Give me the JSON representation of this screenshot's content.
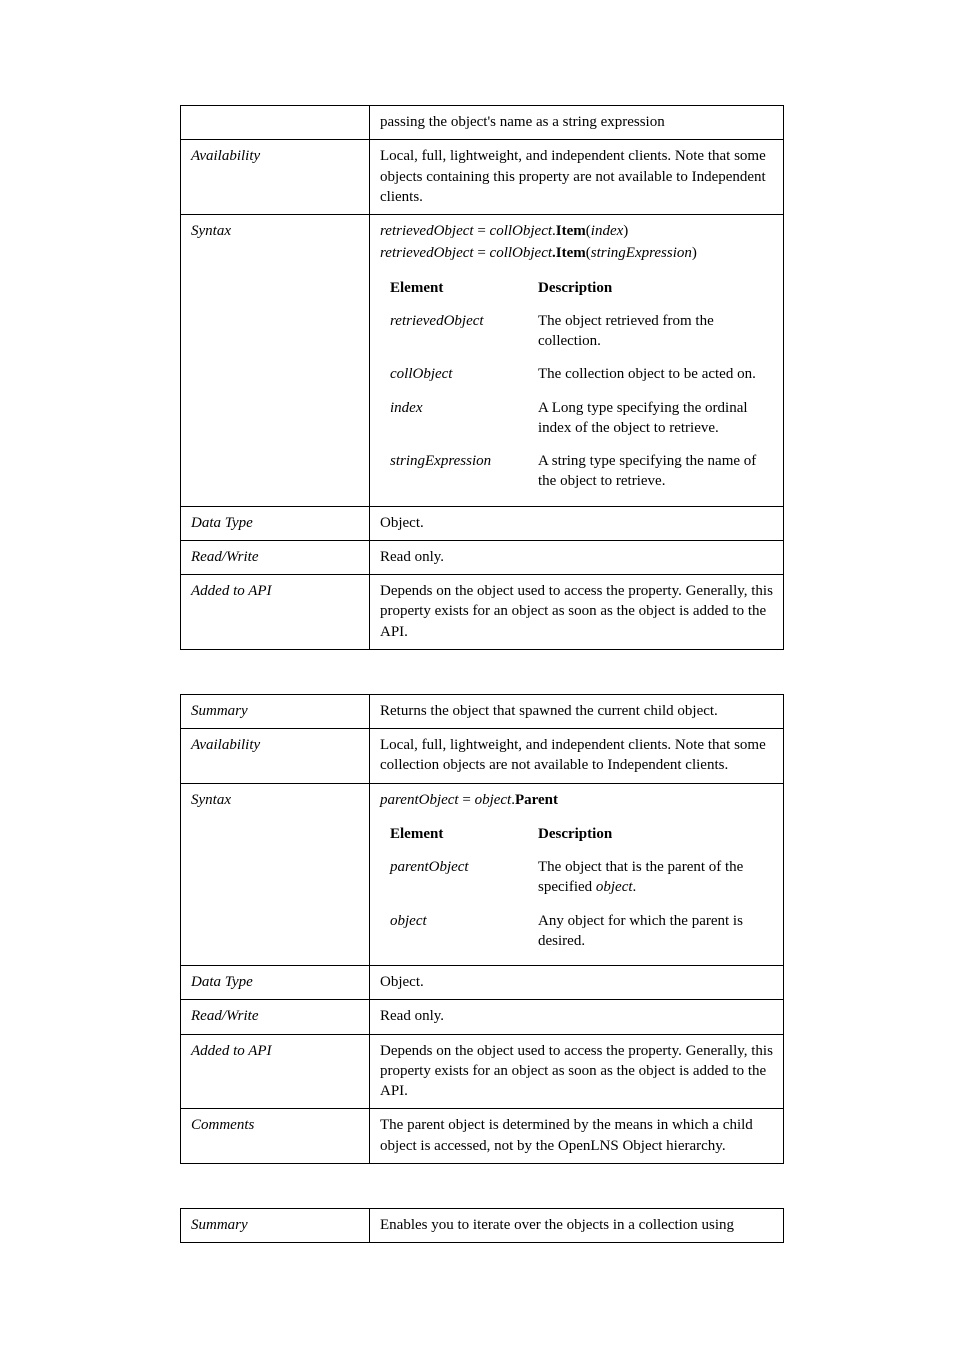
{
  "table1": {
    "row0_label": "",
    "row0_text": "passing the object's name as a string expression",
    "availability_label": "Availability",
    "availability_text": "Local, full, lightweight, and independent clients. Note that some objects containing this property are not available to Independent clients.",
    "syntax_label": "Syntax",
    "syntax_line1_lhs": "retrievedObject",
    "syntax_line1_eq": " = ",
    "syntax_line1_coll": "collObject",
    "syntax_line1_dot": ".",
    "syntax_line1_item": "Item",
    "syntax_line1_open": "(",
    "syntax_line1_arg": "index",
    "syntax_line1_close": ")",
    "syntax_line2_lhs": "retrievedObject",
    "syntax_line2_eq": " = ",
    "syntax_line2_coll": "collObject",
    "syntax_line2_dot": ".",
    "syntax_line2_item": "Item",
    "syntax_line2_open": "(",
    "syntax_line2_arg": "stringExpression",
    "syntax_line2_close": ")",
    "elem_hdr": "Element",
    "desc_hdr": "Description",
    "e1": "retrievedObject",
    "d1": "The object retrieved from the collection.",
    "e2": "collObject",
    "d2": "The collection object to be acted on.",
    "e3": "index",
    "d3": "A Long type specifying the ordinal index of the object to retrieve.",
    "e4": "stringExpression",
    "d4": "A string type specifying the name of the object to retrieve.",
    "datatype_label": "Data Type",
    "datatype_text": "Object.",
    "rw_label": "Read/Write",
    "rw_text": "Read only.",
    "added_label": "Added to API",
    "added_text": "Depends on the object used to access the property. Generally, this property exists for an object as soon as the object is added to the API."
  },
  "table2": {
    "summary_label": "Summary",
    "summary_text": "Returns the object that spawned the current child object.",
    "availability_label": "Availability",
    "availability_text": "Local, full, lightweight, and independent clients. Note that some collection objects are not available to Independent clients.",
    "syntax_label": "Syntax",
    "syntax_lhs": "parentObject",
    "syntax_eq": " = ",
    "syntax_obj": "object",
    "syntax_dot": ".",
    "syntax_prop": "Parent",
    "elem_hdr": "Element",
    "desc_hdr": "Description",
    "e1": "parentObject",
    "d1a": "The object that is the parent of the specified ",
    "d1b": "object",
    "d1c": ".",
    "e2": "object",
    "d2": "Any object for which the parent is desired.",
    "datatype_label": "Data Type",
    "datatype_text": "Object.",
    "rw_label": "Read/Write",
    "rw_text": "Read only.",
    "added_label": "Added to API",
    "added_text": "Depends on the object used to access the property. Generally, this property exists for an object as soon as the object is added to the API.",
    "comments_label": "Comments",
    "comments_text": "The parent object is determined by the means in which a child object is accessed, not by the OpenLNS Object hierarchy."
  },
  "table3": {
    "summary_label": "Summary",
    "summary_text": "Enables you to iterate over the objects in a collection using"
  }
}
